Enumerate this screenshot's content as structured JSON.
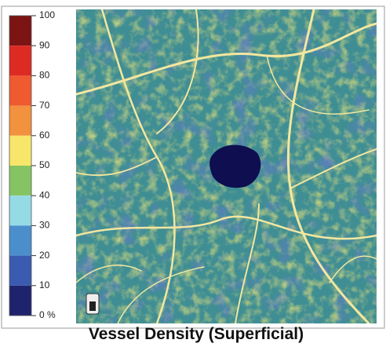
{
  "colorbar": {
    "ticks": [
      100,
      90,
      80,
      70,
      60,
      50,
      40,
      30,
      20,
      10,
      {
        "value": 0,
        "label": "0 %"
      }
    ],
    "colors": [
      "#7c1414",
      "#dd2a22",
      "#ef5a30",
      "#f2913e",
      "#f7e66a",
      "#86c463",
      "#94dbe6",
      "#4a8fcb",
      "#3a5bb0",
      "#1f236e"
    ]
  },
  "caption": "Vessel Density (Superficial)"
}
